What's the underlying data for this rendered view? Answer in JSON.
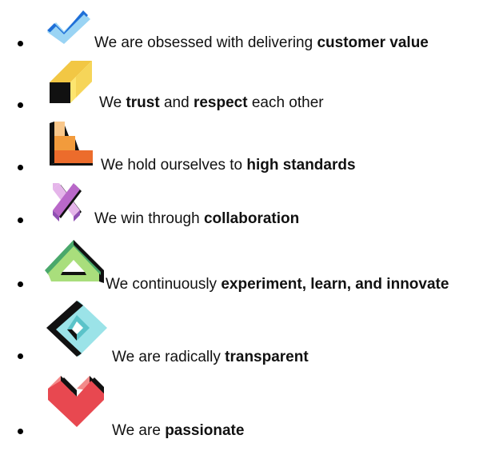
{
  "values": [
    {
      "prefix": "We are obsessed with delivering ",
      "emphasis_1": "customer value",
      "middle": "",
      "emphasis_2": "",
      "suffix": "",
      "icon": "checkmark-icon",
      "colors": [
        "#1e6fd8",
        "#9ad4f4"
      ]
    },
    {
      "prefix": "We ",
      "emphasis_1": "trust",
      "middle": " and ",
      "emphasis_2": "respect",
      "suffix": " each other",
      "icon": "cube-icon",
      "colors": [
        "#f2c744",
        "#fde56f",
        "#111111"
      ]
    },
    {
      "prefix": "We hold ourselves to ",
      "emphasis_1": "high standards",
      "middle": "",
      "emphasis_2": "",
      "suffix": "",
      "icon": "steps-icon",
      "colors": [
        "#f9c78a",
        "#f29b3c",
        "#ec6c2c",
        "#111111"
      ]
    },
    {
      "prefix": "We win through ",
      "emphasis_1": "collaboration",
      "middle": "",
      "emphasis_2": "",
      "suffix": "",
      "icon": "cross-icon",
      "colors": [
        "#e5b5ea",
        "#b968c9",
        "#8f4fb3",
        "#111111"
      ]
    },
    {
      "prefix": "We continuously ",
      "emphasis_1": "experiment, learn, and innovate",
      "middle": "",
      "emphasis_2": "",
      "suffix": "",
      "icon": "triangle-icon",
      "colors": [
        "#4aa86b",
        "#a9de7c",
        "#111111"
      ]
    },
    {
      "prefix": "We are radically ",
      "emphasis_1": "transparent",
      "middle": "",
      "emphasis_2": "",
      "suffix": "",
      "icon": "diamond-icon",
      "colors": [
        "#9be3e8",
        "#5bc3c9",
        "#111111"
      ]
    },
    {
      "prefix": "We are ",
      "emphasis_1": "passionate",
      "middle": "",
      "emphasis_2": "",
      "suffix": "",
      "icon": "heart-icon",
      "colors": [
        "#f28a8a",
        "#e84850",
        "#111111"
      ]
    }
  ]
}
